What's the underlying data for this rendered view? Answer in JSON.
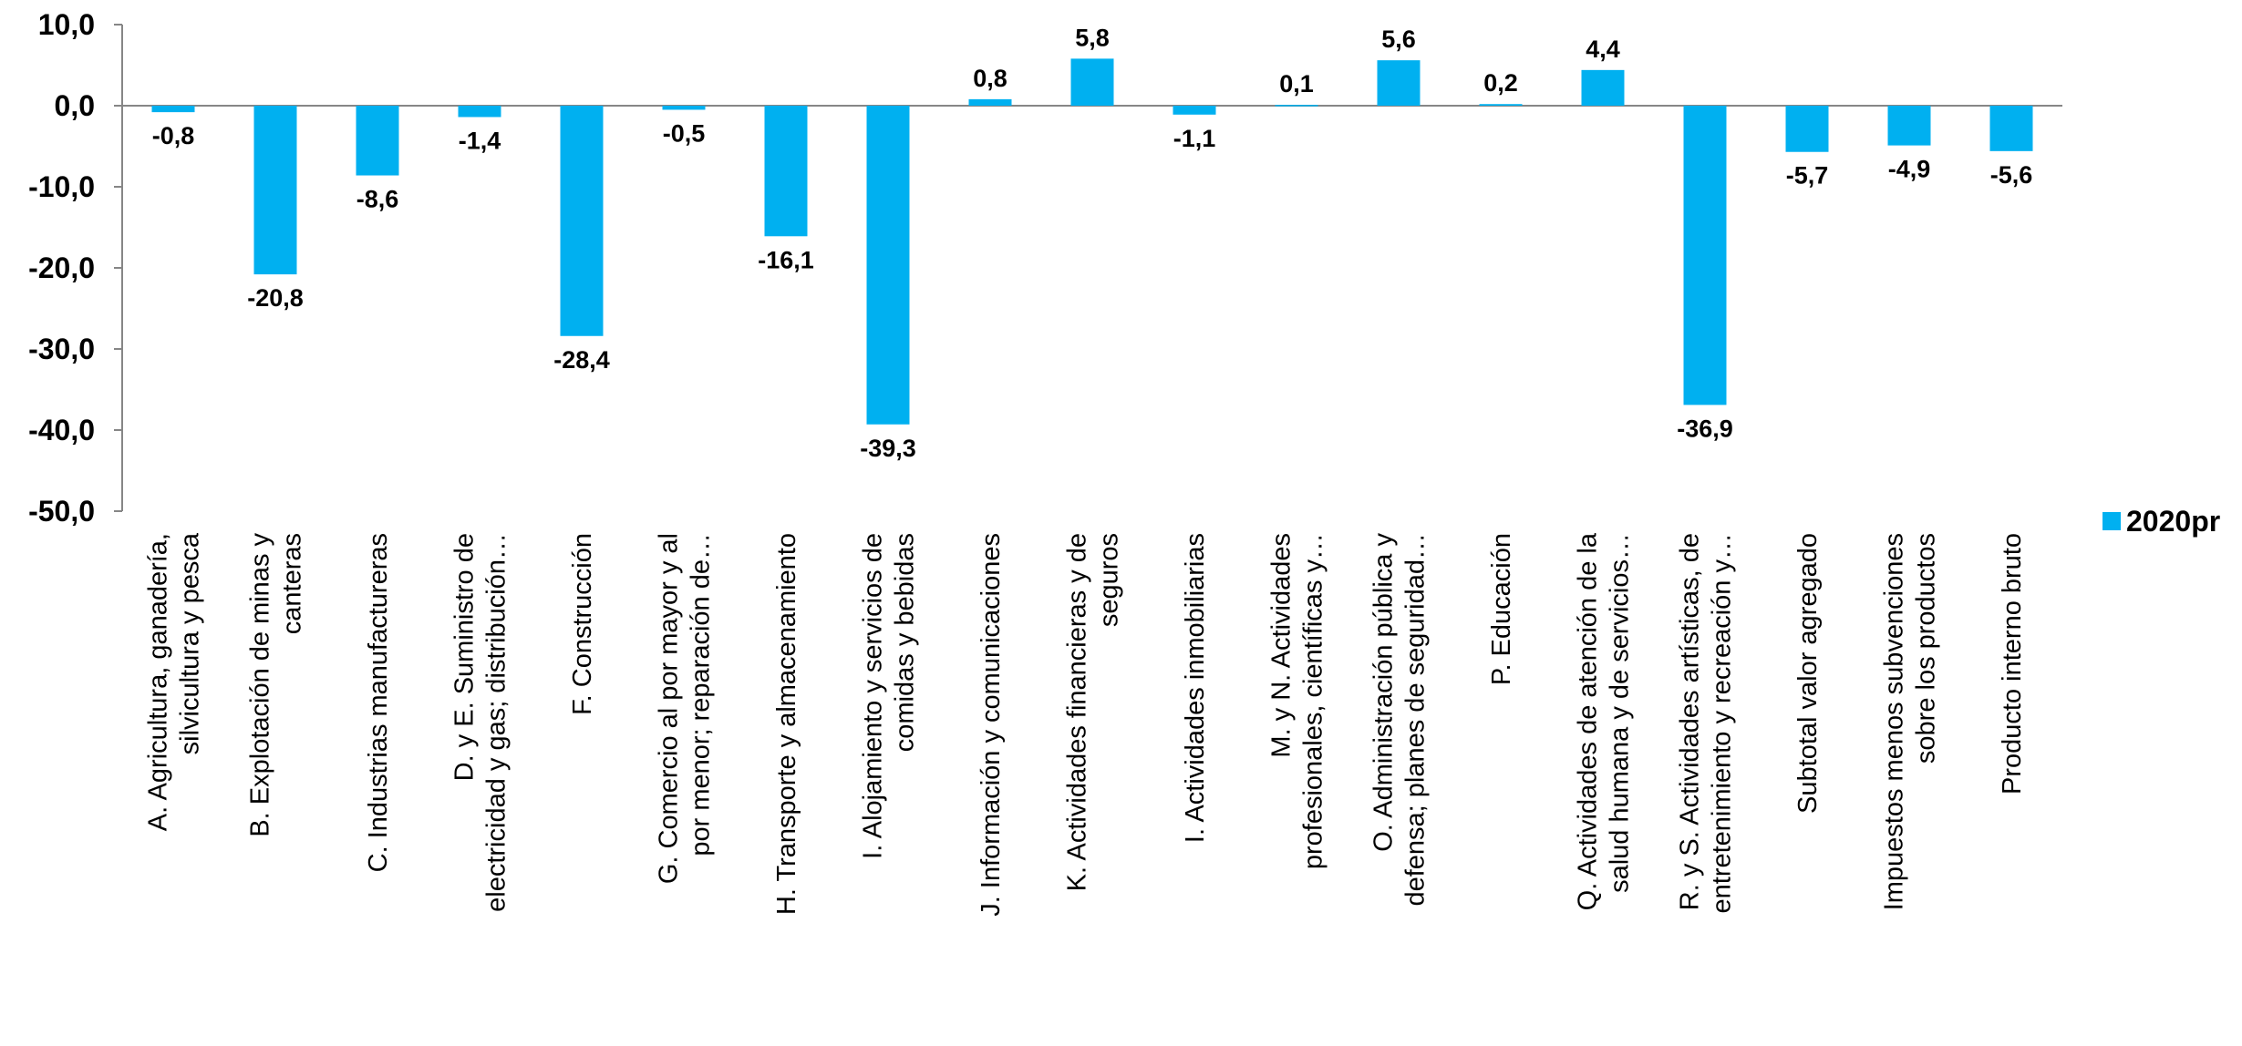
{
  "chart_data": {
    "type": "bar",
    "categories": [
      [
        "A. Agricultura, ganadería,",
        "silvicultura y pesca"
      ],
      [
        "B. Explotación de minas y",
        "canteras"
      ],
      [
        "C. Industrias manufactureras"
      ],
      [
        "D. y E. Suministro de",
        "electricidad y gas; distribución…"
      ],
      [
        "F. Construcción"
      ],
      [
        "G. Comercio al por mayor y al",
        "por menor; reparación de…"
      ],
      [
        "H. Transporte y almacenamiento"
      ],
      [
        "I. Alojamiento y servicios de",
        "comidas y bebidas"
      ],
      [
        "J. Información y comunicaciones"
      ],
      [
        "K. Actividades financieras y de",
        "seguros"
      ],
      [
        "I. Actividades inmobiliarias"
      ],
      [
        "M. y N. Actividades",
        "profesionales, científicas y…"
      ],
      [
        "O. Administración pública y",
        "defensa; planes de seguridad…"
      ],
      [
        "P. Educación"
      ],
      [
        "Q. Actividades de atención de la",
        "salud humana y de servicios…"
      ],
      [
        "R. y S. Actividades artísticas, de",
        "entretenimiento y recreación y…"
      ],
      [
        "Subtotal valor agregado"
      ],
      [
        "Impuestos menos subvenciones",
        "sobre los productos"
      ],
      [
        "Producto interno bruto"
      ]
    ],
    "series": [
      {
        "name": "2020pr",
        "color": "#00B0F0",
        "values": [
          -0.8,
          -20.8,
          -8.6,
          -1.4,
          -28.4,
          -0.5,
          -16.1,
          -39.3,
          0.8,
          5.8,
          -1.1,
          0.1,
          5.6,
          0.2,
          4.4,
          -36.9,
          -5.7,
          -4.9,
          -5.6
        ],
        "labels": [
          "-0,8",
          "-20,8",
          "-8,6",
          "-1,4",
          "-28,4",
          "-0,5",
          "-16,1",
          "-39,3",
          "0,8",
          "5,8",
          "-1,1",
          "0,1",
          "5,6",
          "0,2",
          "4,4",
          "-36,9",
          "-5,7",
          "-4,9",
          "-5,6"
        ]
      }
    ],
    "yticks": [
      10,
      0,
      -10,
      -20,
      -30,
      -40,
      -50
    ],
    "ytick_labels": [
      "10,0",
      "0,0",
      "-10,0",
      "-20,0",
      "-30,0",
      "-40,0",
      "-50,0"
    ],
    "ylim": [
      -50,
      10
    ],
    "grid": false,
    "legend_position": "right",
    "title": "",
    "xlabel": "",
    "ylabel": ""
  }
}
